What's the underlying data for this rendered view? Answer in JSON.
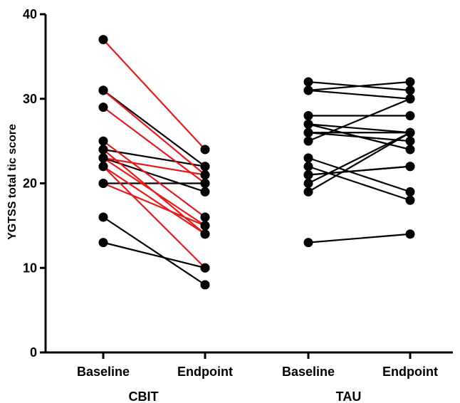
{
  "chart_data": {
    "type": "line",
    "ylabel": "YGTSS total tic score",
    "ylim": [
      0,
      40
    ],
    "yticks": [
      0,
      10,
      20,
      30,
      40
    ],
    "grid": false,
    "colors": {
      "responder": "#e41a1c",
      "non_responder": "#000000",
      "axis": "#000000",
      "marker": "#000000"
    },
    "groups": [
      {
        "name": "CBIT",
        "categories": [
          "Baseline",
          "Endpoint"
        ],
        "pairs": [
          {
            "baseline": 37,
            "endpoint": 24,
            "color": "red"
          },
          {
            "baseline": 31,
            "endpoint": 22,
            "color": "black"
          },
          {
            "baseline": 31,
            "endpoint": 21,
            "color": "red"
          },
          {
            "baseline": 29,
            "endpoint": 20,
            "color": "red"
          },
          {
            "baseline": 25,
            "endpoint": 16,
            "color": "red"
          },
          {
            "baseline": 24,
            "endpoint": 22,
            "color": "black"
          },
          {
            "baseline": 24,
            "endpoint": 14,
            "color": "red"
          },
          {
            "baseline": 23,
            "endpoint": 21,
            "color": "red"
          },
          {
            "baseline": 23,
            "endpoint": 19,
            "color": "black"
          },
          {
            "baseline": 23,
            "endpoint": 15,
            "color": "red"
          },
          {
            "baseline": 22,
            "endpoint": 14,
            "color": "red"
          },
          {
            "baseline": 22,
            "endpoint": 10,
            "color": "red"
          },
          {
            "baseline": 20,
            "endpoint": 20,
            "color": "black"
          },
          {
            "baseline": 20,
            "endpoint": 15,
            "color": "red"
          },
          {
            "baseline": 16,
            "endpoint": 8,
            "color": "black"
          },
          {
            "baseline": 13,
            "endpoint": 10,
            "color": "black"
          }
        ]
      },
      {
        "name": "TAU",
        "categories": [
          "Baseline",
          "Endpoint"
        ],
        "pairs": [
          {
            "baseline": 32,
            "endpoint": 31,
            "color": "black"
          },
          {
            "baseline": 31,
            "endpoint": 32,
            "color": "black"
          },
          {
            "baseline": 31,
            "endpoint": 30,
            "color": "black"
          },
          {
            "baseline": 28,
            "endpoint": 28,
            "color": "black"
          },
          {
            "baseline": 27,
            "endpoint": 26,
            "color": "black"
          },
          {
            "baseline": 27,
            "endpoint": 24,
            "color": "black"
          },
          {
            "baseline": 26,
            "endpoint": 26,
            "color": "black"
          },
          {
            "baseline": 26,
            "endpoint": 25,
            "color": "black"
          },
          {
            "baseline": 25,
            "endpoint": 30,
            "color": "black"
          },
          {
            "baseline": 23,
            "endpoint": 19,
            "color": "black"
          },
          {
            "baseline": 22,
            "endpoint": 18,
            "color": "black"
          },
          {
            "baseline": 21,
            "endpoint": 22,
            "color": "black"
          },
          {
            "baseline": 21,
            "endpoint": 22,
            "color": "black"
          },
          {
            "baseline": 20,
            "endpoint": 26,
            "color": "black"
          },
          {
            "baseline": 19,
            "endpoint": 26,
            "color": "black"
          },
          {
            "baseline": 13,
            "endpoint": 14,
            "color": "black"
          }
        ]
      }
    ]
  }
}
